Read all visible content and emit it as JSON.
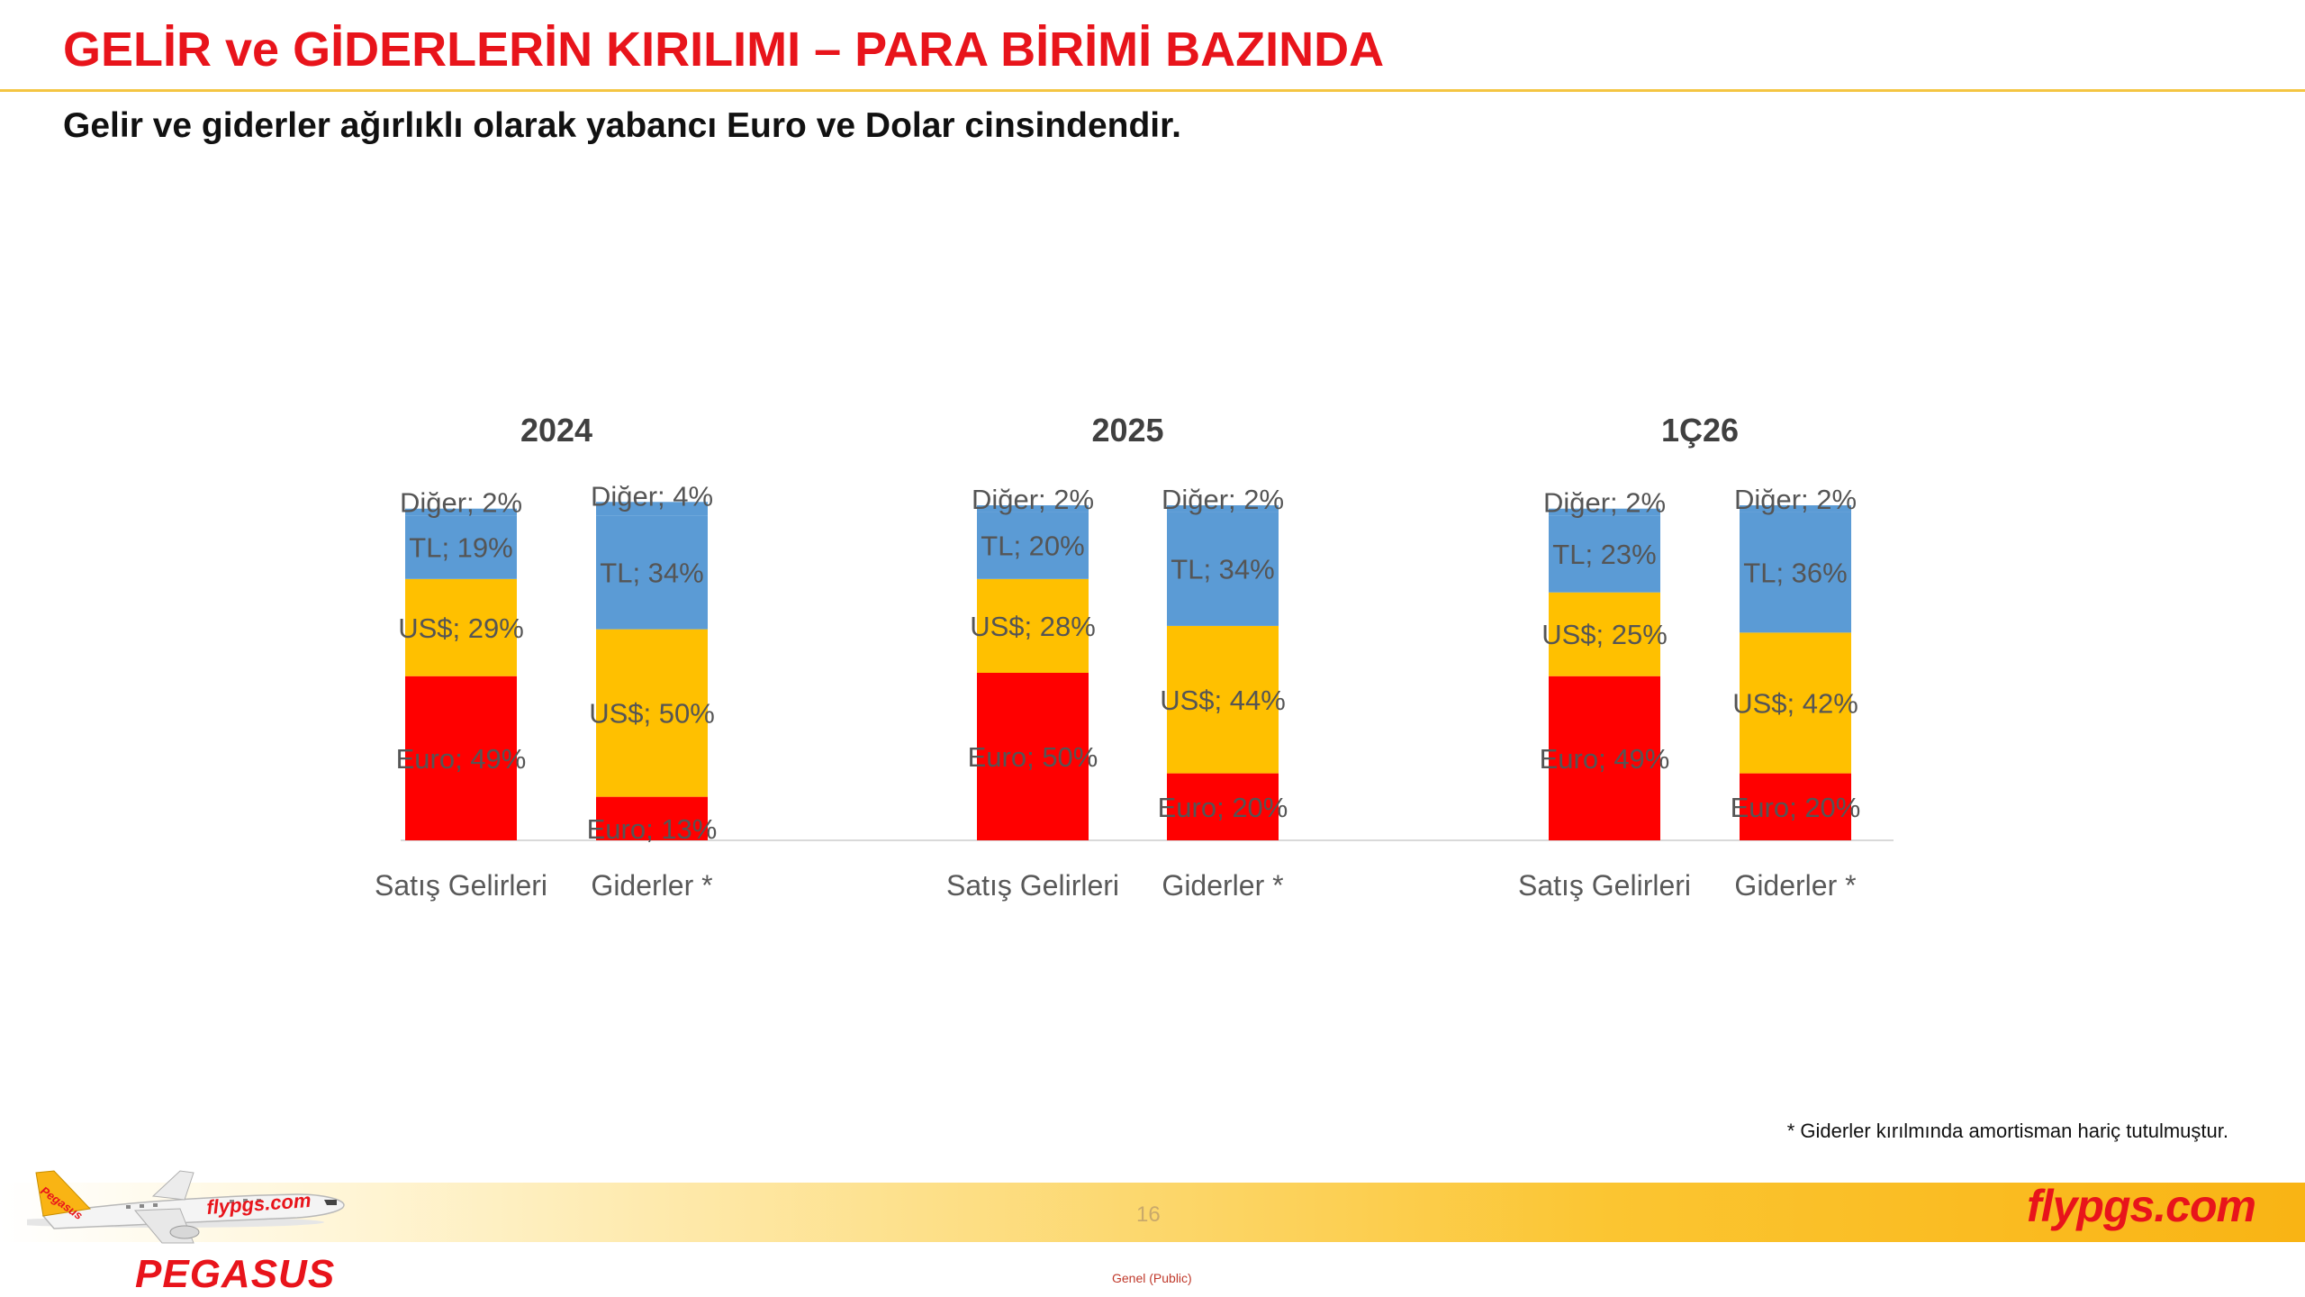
{
  "header": {
    "title": "GELİR ve GİDERLERİN KIRILIMI – PARA BİRİMİ BAZINDA",
    "subtitle": "Gelir ve giderler ağırlıklı olarak yabancı Euro ve Dolar cinsindendir."
  },
  "chart_data": {
    "type": "bar",
    "stacked": true,
    "stack_order": [
      "Euro",
      "US$",
      "TL",
      "Diğer"
    ],
    "label_format": "{series}; {value}%",
    "colors": {
      "Euro": "#ff0000",
      "US$": "#ffc000",
      "TL": "#5b9bd5",
      "Diğer": "#5b9bd5"
    },
    "groups": [
      {
        "title": "2024",
        "bars": [
          {
            "category": "Satış Gelirleri",
            "values": {
              "Euro": 49,
              "US$": 29,
              "TL": 19,
              "Diğer": 2
            }
          },
          {
            "category": "Giderler *",
            "values": {
              "Euro": 13,
              "US$": 50,
              "TL": 34,
              "Diğer": 4
            }
          }
        ]
      },
      {
        "title": "2025",
        "bars": [
          {
            "category": "Satış Gelirleri",
            "values": {
              "Euro": 50,
              "US$": 28,
              "TL": 20,
              "Diğer": 2
            }
          },
          {
            "category": "Giderler *",
            "values": {
              "Euro": 20,
              "US$": 44,
              "TL": 34,
              "Diğer": 2
            }
          }
        ]
      },
      {
        "title": "1Ç26",
        "bars": [
          {
            "category": "Satış Gelirleri",
            "values": {
              "Euro": 49,
              "US$": 25,
              "TL": 23,
              "Diğer": 2
            }
          },
          {
            "category": "Giderler *",
            "values": {
              "Euro": 20,
              "US$": 42,
              "TL": 36,
              "Diğer": 2
            }
          }
        ]
      }
    ],
    "legend": "none",
    "grid": false
  },
  "footer": {
    "footnote": "* Giderler kırılmında amortisman hariç tutulmuştur.",
    "page_number": "16",
    "website": "flypgs.com",
    "classification": "Genel (Public)",
    "brand": "PEGASUS",
    "plane_livery_text": "flypgs.com",
    "tail_text": "Pegasus"
  }
}
